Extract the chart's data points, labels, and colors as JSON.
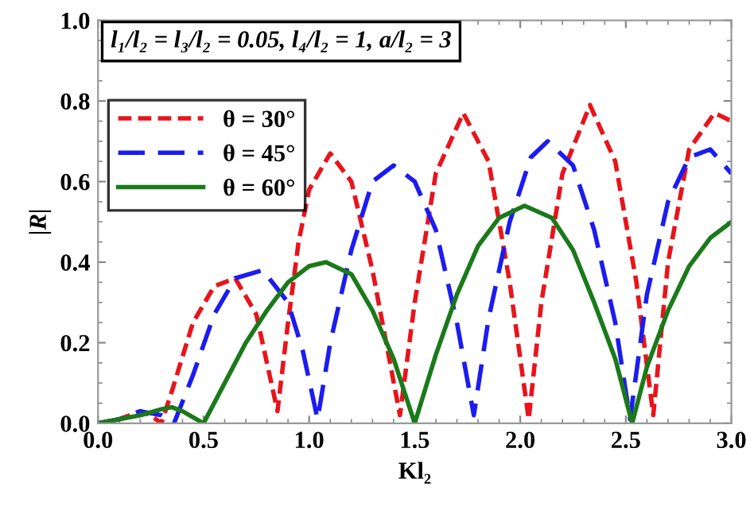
{
  "chart_data": {
    "type": "line",
    "xlabel": "Kl₂",
    "ylabel": "|R|",
    "annotations": [
      "l₁/l₂ = l₃/l₂ = 0.05, l₄/l₂ = 1, a/l₂ = 3"
    ],
    "xlim": [
      0,
      3
    ],
    "ylim": [
      0,
      1
    ],
    "xticks": [
      {
        "value": 0,
        "label": "0.0"
      },
      0.5,
      {
        "value": 1,
        "label": "1.0"
      },
      1.5,
      {
        "value": 2,
        "label": "2.0"
      },
      2.5,
      {
        "value": 3,
        "label": "3.0"
      }
    ],
    "yticks": [
      {
        "value": 0,
        "label": "0.0"
      },
      0.2,
      0.4,
      0.6,
      0.8,
      {
        "value": 1,
        "label": "1.0"
      }
    ],
    "grid": false,
    "legend": "top left",
    "marker": "none",
    "series": [
      {
        "name": "θ = 30°",
        "color": "#e8141c",
        "line_style": "dotted",
        "x": [
          0,
          0.1,
          0.2,
          0.25,
          0.3,
          0.35,
          0.45,
          0.55,
          0.65,
          0.75,
          0.85,
          0.9,
          0.95,
          1.0,
          1.1,
          1.2,
          1.3,
          1.43,
          1.5,
          1.6,
          1.73,
          1.85,
          1.95,
          2.04,
          2.1,
          2.2,
          2.33,
          2.45,
          2.55,
          2.63,
          2.7,
          2.8,
          2.92,
          3.0
        ],
        "values": [
          0,
          0.01,
          0.03,
          0.02,
          0,
          0.08,
          0.25,
          0.34,
          0.36,
          0.27,
          0.03,
          0.25,
          0.45,
          0.58,
          0.67,
          0.6,
          0.38,
          0.02,
          0.3,
          0.62,
          0.77,
          0.65,
          0.35,
          0.01,
          0.3,
          0.62,
          0.79,
          0.65,
          0.35,
          0.02,
          0.4,
          0.68,
          0.77,
          0.75
        ]
      },
      {
        "name": "θ = 45°",
        "color": "#1c1cf0",
        "line_style": "dashed",
        "x": [
          0,
          0.1,
          0.2,
          0.3,
          0.36,
          0.45,
          0.55,
          0.65,
          0.78,
          0.9,
          0.97,
          1.04,
          1.1,
          1.2,
          1.3,
          1.4,
          1.5,
          1.6,
          1.7,
          1.78,
          1.85,
          1.95,
          2.05,
          2.13,
          2.25,
          2.35,
          2.45,
          2.52,
          2.6,
          2.7,
          2.8,
          2.9,
          3.0
        ],
        "values": [
          0,
          0.01,
          0.03,
          0.02,
          0,
          0.12,
          0.27,
          0.36,
          0.38,
          0.3,
          0.18,
          0.01,
          0.2,
          0.43,
          0.6,
          0.64,
          0.6,
          0.48,
          0.25,
          0.02,
          0.26,
          0.5,
          0.66,
          0.7,
          0.64,
          0.48,
          0.25,
          0.01,
          0.32,
          0.55,
          0.66,
          0.68,
          0.62
        ]
      },
      {
        "name": "θ = 60°",
        "color": "#1a7a1a",
        "line_style": "solid",
        "x": [
          0,
          0.1,
          0.2,
          0.3,
          0.35,
          0.4,
          0.5,
          0.6,
          0.7,
          0.8,
          0.9,
          1.0,
          1.08,
          1.2,
          1.3,
          1.4,
          1.5,
          1.6,
          1.7,
          1.8,
          1.9,
          2.02,
          2.15,
          2.25,
          2.35,
          2.45,
          2.53,
          2.6,
          2.7,
          2.8,
          2.9,
          3.0
        ],
        "values": [
          0,
          0.01,
          0.02,
          0.035,
          0.04,
          0.03,
          0,
          0.1,
          0.2,
          0.28,
          0.35,
          0.39,
          0.4,
          0.37,
          0.28,
          0.16,
          0,
          0.17,
          0.32,
          0.44,
          0.51,
          0.54,
          0.51,
          0.43,
          0.3,
          0.16,
          0,
          0.14,
          0.28,
          0.39,
          0.46,
          0.5
        ]
      }
    ]
  }
}
